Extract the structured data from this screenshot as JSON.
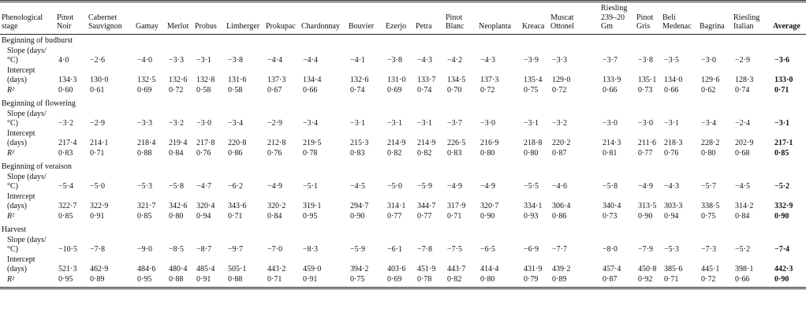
{
  "table": {
    "columns": [
      "Phenological stage",
      "Pinot Noir",
      "Cabernet Sauvignon",
      "Gamay",
      "Merlot",
      "Probus",
      "Limberger",
      "Prokupac",
      "Chardonnay",
      "Bouvier",
      "Ezerjo",
      "Petra",
      "Pinot Blanc",
      "Neoplanta",
      "Kreaca",
      "Muscat Ottonel",
      "Riesling 239–20 Gm",
      "Pinot Gris",
      "Beli Medenac",
      "Bagrina",
      "Riesling Italian",
      "Average"
    ],
    "sections": [
      {
        "title": "Beginning of budburst",
        "rows": [
          {
            "label": "Slope (days/°C)",
            "values": [
              "4·0",
              "−2·6",
              "−4·0",
              "−3·3",
              "−3·1",
              "−3·8",
              "−4·4",
              "−4·4",
              "−4·1",
              "−3·8",
              "−4·3",
              "−4·2",
              "−4·3",
              "−3·9",
              "−3·3",
              "−3·7",
              "−3·8",
              "−3·5",
              "−3·0",
              "−2·9",
              "−3·6"
            ]
          },
          {
            "label": "Intercept (days)",
            "values": [
              "134·3",
              "130·0",
              "132·5",
              "132·6",
              "132·8",
              "131·6",
              "137·3",
              "134·4",
              "132·6",
              "131·0",
              "133·7",
              "134·5",
              "137·3",
              "135·4",
              "129·0",
              "133·9",
              "135·1",
              "134·0",
              "129·6",
              "128·3",
              "133·0"
            ]
          },
          {
            "label": "R²",
            "values": [
              "0·60",
              "0·61",
              "0·69",
              "0·72",
              "0·58",
              "0·58",
              "0·67",
              "0·66",
              "0·74",
              "0·69",
              "0·74",
              "0·70",
              "0·72",
              "0·75",
              "0·72",
              "0·66",
              "0·73",
              "0·66",
              "0·62",
              "0·74",
              "0·71"
            ]
          }
        ]
      },
      {
        "title": "Beginning of flowering",
        "rows": [
          {
            "label": "Slope (days/°C)",
            "values": [
              "−3·2",
              "−2·9",
              "−3·3",
              "−3·2",
              "−3·0",
              "−3·4",
              "−2·9",
              "−3·4",
              "−3·1",
              "−3·1",
              "−3·1",
              "−3·7",
              "−3·0",
              "−3·1",
              "−3·2",
              "−3·0",
              "−3·0",
              "−3·1",
              "−3·4",
              "−2·4",
              "−3·1"
            ]
          },
          {
            "label": "Intercept (days)",
            "values": [
              "217·4",
              "214·1",
              "218·4",
              "219·4",
              "217·8",
              "220·8",
              "212·8",
              "219·5",
              "215·3",
              "214·9",
              "214·9",
              "226·5",
              "216·9",
              "218·8",
              "220·2",
              "214·3",
              "211·6",
              "218·3",
              "228·2",
              "202·9",
              "217·1"
            ]
          },
          {
            "label": "R²",
            "values": [
              "0·83",
              "0·71",
              "0·88",
              "0·84",
              "0·76",
              "0·86",
              "0·76",
              "0·78",
              "0·83",
              "0·82",
              "0·82",
              "0·83",
              "0·80",
              "0·80",
              "0·87",
              "0·81",
              "0·77",
              "0·76",
              "0·80",
              "0·68",
              "0·85"
            ]
          }
        ]
      },
      {
        "title": "Beginning of veraison",
        "rows": [
          {
            "label": "Slope (days/°C)",
            "values": [
              "−5·4",
              "−5·0",
              "−5·3",
              "−5·8",
              "−4·7",
              "−6·2",
              "−4·9",
              "−5·1",
              "−4·5",
              "−5·0",
              "−5·9",
              "−4·9",
              "−4·9",
              "−5·5",
              "−4·6",
              "−5·8",
              "−4·9",
              "−4·3",
              "−5·7",
              "−4·5",
              "−5·2"
            ]
          },
          {
            "label": "Intercept (days)",
            "values": [
              "322·7",
              "322·9",
              "321·7",
              "342·6",
              "320·4",
              "343·6",
              "320·2",
              "319·1",
              "294·7",
              "314·1",
              "344·7",
              "317·9",
              "320·7",
              "334·1",
              "306·4",
              "340·4",
              "313·5",
              "303·3",
              "338·5",
              "314·2",
              "332·9"
            ]
          },
          {
            "label": "R²",
            "values": [
              "0·85",
              "0·91",
              "0·85",
              "0·80",
              "0·94",
              "0·71",
              "0·84",
              "0·95",
              "0·90",
              "0·77",
              "0·77",
              "0·71",
              "0·90",
              "0·93",
              "0·86",
              "0·73",
              "0·90",
              "0·94",
              "0·75",
              "0·84",
              "0·90"
            ]
          }
        ]
      },
      {
        "title": "Harvest",
        "rows": [
          {
            "label": "Slope (days/°C)",
            "values": [
              "−10·5",
              "−7·8",
              "−9·0",
              "−8·5",
              "−8·7",
              "−9·7",
              "−7·0",
              "−8·3",
              "−5·9",
              "−6·1",
              "−7·8",
              "−7·5",
              "−6·5",
              "−6·9",
              "−7·7",
              "−8·0",
              "−7·9",
              "−5·3",
              "−7·3",
              "−5·2",
              "−7·4"
            ]
          },
          {
            "label": "Intercept (days)",
            "values": [
              "521·3",
              "462·9",
              "484·6",
              "480·4",
              "485·4",
              "505·1",
              "443·2",
              "459·0",
              "394·2",
              "403·6",
              "451·9",
              "443·7",
              "414·4",
              "431·9",
              "439·2",
              "457·4",
              "450·8",
              "385·6",
              "445·1",
              "398·1",
              "442·3"
            ]
          },
          {
            "label": "R²",
            "values": [
              "0·95",
              "0·89",
              "0·95",
              "0·88",
              "0·91",
              "0·88",
              "0·71",
              "0·91",
              "0·75",
              "0·69",
              "0·78",
              "0·82",
              "0·80",
              "0·79",
              "0·89",
              "0·87",
              "0·92",
              "0·71",
              "0·72",
              "0·66",
              "0·90"
            ]
          }
        ]
      }
    ]
  }
}
